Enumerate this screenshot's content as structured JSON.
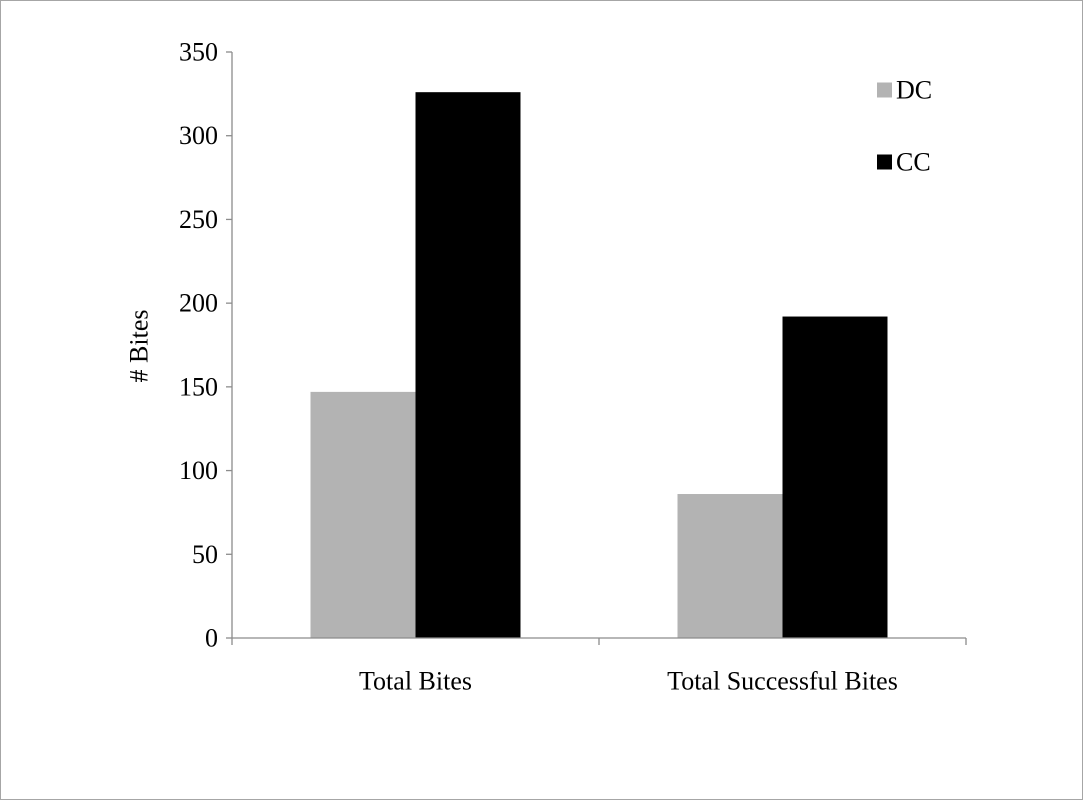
{
  "chart_data": {
    "type": "bar",
    "title": "",
    "xlabel": "",
    "ylabel": "# Bites",
    "ylim": [
      0,
      350
    ],
    "ytick_step": 50,
    "grid": false,
    "legend_position": "top-right",
    "categories": [
      "Total Bites",
      "Total Successful Bites"
    ],
    "series": [
      {
        "name": "DC",
        "color": "#b3b3b3",
        "values": [
          147,
          86
        ]
      },
      {
        "name": "CC",
        "color": "#000000",
        "values": [
          326,
          192
        ]
      }
    ]
  }
}
